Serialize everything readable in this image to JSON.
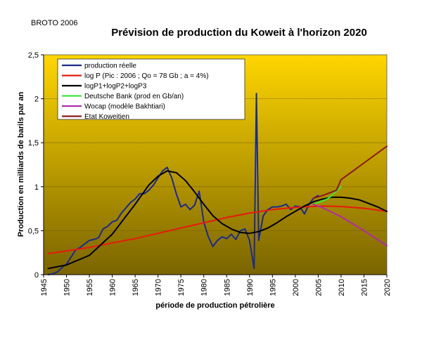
{
  "chart_data": {
    "type": "line",
    "corner_label": "BROTO 2006",
    "title": "Prévision de production du Koweit à l'horizon 2020",
    "xlabel": "période de production pétrolière",
    "ylabel": "Production en milliards de barils par an",
    "xlim": [
      1945,
      2020
    ],
    "ylim": [
      0,
      2.5
    ],
    "x_ticks": [
      "1945",
      "1950",
      "1955",
      "1960",
      "1965",
      "1970",
      "1975",
      "1980",
      "1985",
      "1990",
      "1995",
      "2000",
      "2005",
      "2010",
      "2015",
      "2020"
    ],
    "y_ticks": [
      "0",
      "0,5",
      "1",
      "1,5",
      "2",
      "2,5"
    ],
    "grid": "horizontal",
    "legend_position": "top-left",
    "plot_background": {
      "top_color": "#ffd600",
      "bottom_color": "#7a6400"
    },
    "series": [
      {
        "name": "production réelle",
        "color": "#1c2a8c",
        "points": [
          [
            1946,
            0
          ],
          [
            1947,
            0.01
          ],
          [
            1948,
            0.03
          ],
          [
            1949,
            0.08
          ],
          [
            1950,
            0.12
          ],
          [
            1951,
            0.2
          ],
          [
            1952,
            0.28
          ],
          [
            1953,
            0.31
          ],
          [
            1954,
            0.35
          ],
          [
            1955,
            0.39
          ],
          [
            1956,
            0.4
          ],
          [
            1957,
            0.42
          ],
          [
            1958,
            0.52
          ],
          [
            1959,
            0.55
          ],
          [
            1960,
            0.6
          ],
          [
            1961,
            0.62
          ],
          [
            1962,
            0.7
          ],
          [
            1963,
            0.76
          ],
          [
            1964,
            0.82
          ],
          [
            1965,
            0.86
          ],
          [
            1966,
            0.92
          ],
          [
            1967,
            0.92
          ],
          [
            1968,
            0.96
          ],
          [
            1969,
            1.02
          ],
          [
            1970,
            1.1
          ],
          [
            1971,
            1.18
          ],
          [
            1972,
            1.22
          ],
          [
            1973,
            1.1
          ],
          [
            1974,
            0.92
          ],
          [
            1975,
            0.77
          ],
          [
            1976,
            0.8
          ],
          [
            1977,
            0.74
          ],
          [
            1978,
            0.79
          ],
          [
            1979,
            0.95
          ],
          [
            1980,
            0.6
          ],
          [
            1981,
            0.43
          ],
          [
            1982,
            0.32
          ],
          [
            1983,
            0.39
          ],
          [
            1984,
            0.43
          ],
          [
            1985,
            0.41
          ],
          [
            1986,
            0.46
          ],
          [
            1987,
            0.4
          ],
          [
            1988,
            0.5
          ],
          [
            1989,
            0.52
          ],
          [
            1990,
            0.39
          ],
          [
            1991,
            0.07
          ],
          [
            1991.5,
            2.06
          ],
          [
            1992,
            0.39
          ],
          [
            1993,
            0.67
          ],
          [
            1994,
            0.74
          ],
          [
            1995,
            0.77
          ],
          [
            1996,
            0.77
          ],
          [
            1997,
            0.78
          ],
          [
            1998,
            0.8
          ],
          [
            1999,
            0.74
          ],
          [
            2000,
            0.78
          ],
          [
            2001,
            0.77
          ],
          [
            2002,
            0.69
          ],
          [
            2003,
            0.8
          ],
          [
            2004,
            0.87
          ],
          [
            2005,
            0.9
          ]
        ]
      },
      {
        "name": "log P (Pic : 2006 ; Qo = 78 Gb ; a = 4%)",
        "color": "#e81a0a",
        "points": [
          [
            1946,
            0.24
          ],
          [
            1950,
            0.27
          ],
          [
            1955,
            0.31
          ],
          [
            1960,
            0.36
          ],
          [
            1965,
            0.41
          ],
          [
            1970,
            0.47
          ],
          [
            1975,
            0.53
          ],
          [
            1980,
            0.59
          ],
          [
            1985,
            0.65
          ],
          [
            1990,
            0.7
          ],
          [
            1995,
            0.74
          ],
          [
            2000,
            0.765
          ],
          [
            2006,
            0.78
          ],
          [
            2010,
            0.775
          ],
          [
            2015,
            0.755
          ],
          [
            2020,
            0.72
          ]
        ]
      },
      {
        "name": "logP1+logP2+logP3",
        "color": "#000000",
        "points": [
          [
            1946,
            0.07
          ],
          [
            1950,
            0.11
          ],
          [
            1955,
            0.22
          ],
          [
            1960,
            0.46
          ],
          [
            1965,
            0.8
          ],
          [
            1968,
            1.02
          ],
          [
            1970,
            1.12
          ],
          [
            1972,
            1.18
          ],
          [
            1974,
            1.16
          ],
          [
            1976,
            1.07
          ],
          [
            1978,
            0.94
          ],
          [
            1980,
            0.8
          ],
          [
            1982,
            0.67
          ],
          [
            1984,
            0.58
          ],
          [
            1986,
            0.52
          ],
          [
            1988,
            0.48
          ],
          [
            1990,
            0.47
          ],
          [
            1992,
            0.49
          ],
          [
            1994,
            0.53
          ],
          [
            1996,
            0.59
          ],
          [
            1998,
            0.66
          ],
          [
            2000,
            0.72
          ],
          [
            2002,
            0.78
          ],
          [
            2004,
            0.83
          ],
          [
            2006,
            0.86
          ],
          [
            2008,
            0.88
          ],
          [
            2010,
            0.88
          ],
          [
            2012,
            0.87
          ],
          [
            2014,
            0.85
          ],
          [
            2016,
            0.81
          ],
          [
            2018,
            0.77
          ],
          [
            2020,
            0.72
          ]
        ]
      },
      {
        "name": "Deutsche Bank (prod en Gb/an)",
        "color": "#3de83d",
        "points": [
          [
            2004,
            0.8
          ],
          [
            2005,
            0.82
          ],
          [
            2006,
            0.84
          ],
          [
            2007,
            0.86
          ],
          [
            2008,
            0.9
          ],
          [
            2009,
            0.95
          ],
          [
            2010,
            1.0
          ]
        ]
      },
      {
        "name": "Wocap (modèle Bakhtiari)",
        "color": "#b02ca8",
        "points": [
          [
            2004,
            0.8
          ],
          [
            2006,
            0.76
          ],
          [
            2008,
            0.71
          ],
          [
            2010,
            0.66
          ],
          [
            2015,
            0.5
          ],
          [
            2020,
            0.33
          ]
        ]
      },
      {
        "name": "Etat Koweitien",
        "color": "#8b1a1a",
        "points": [
          [
            2004,
            0.87
          ],
          [
            2006,
            0.9
          ],
          [
            2008,
            0.94
          ],
          [
            2009,
            0.96
          ],
          [
            2010,
            1.08
          ],
          [
            2015,
            1.27
          ],
          [
            2020,
            1.46
          ]
        ]
      }
    ]
  }
}
